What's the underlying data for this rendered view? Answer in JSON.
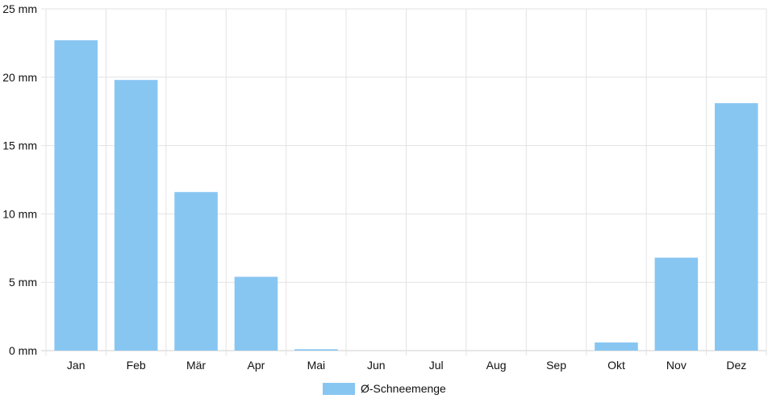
{
  "chart_data": {
    "type": "bar",
    "categories": [
      "Jan",
      "Feb",
      "Mär",
      "Apr",
      "Mai",
      "Jun",
      "Jul",
      "Aug",
      "Sep",
      "Okt",
      "Nov",
      "Dez"
    ],
    "series": [
      {
        "name": "Ø-Schneemenge",
        "values": [
          22.7,
          19.8,
          11.6,
          5.4,
          0.1,
          0,
          0,
          0,
          0,
          0.6,
          6.8,
          18.1
        ],
        "color": "#88C6F2"
      }
    ],
    "y_unit": "mm",
    "ylim": [
      0,
      25
    ],
    "y_ticks": [
      "0 mm",
      "5 mm",
      "10 mm",
      "15 mm",
      "20 mm",
      "25 mm"
    ],
    "grid": true,
    "legend_position": "bottom-center"
  }
}
